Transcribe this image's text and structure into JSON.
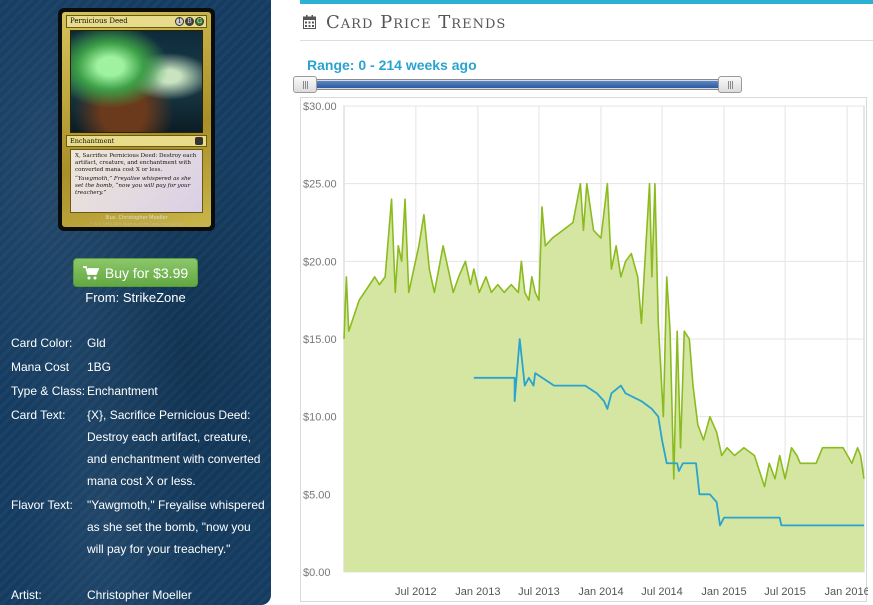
{
  "card_image": {
    "name": "Pernicious Deed",
    "mana": [
      "1",
      "B",
      "G"
    ],
    "type_line": "Enchantment",
    "rules_text": "X, Sacrifice Pernicious Deed: Destroy each artifact, creature, and enchantment with converted mana cost X or less.",
    "flavor_text": "“Yawgmoth,” Freyalise whispered as she set the bomb, “now you will pay for your treachery.”",
    "illustrator": "Illus. Christopher Moeller",
    "copyright": "™ & © 1993-2001 Wizards of the Coast, Inc. 102/143"
  },
  "buy": {
    "label": "Buy for $3.99",
    "from": "From: StrikeZone",
    "icon": "shopping-cart-icon",
    "color": "#6db04a"
  },
  "details": [
    {
      "label": "Card Color:",
      "value": "Gld"
    },
    {
      "label": "Mana Cost",
      "value": "1BG"
    },
    {
      "label": "Type & Class:",
      "value": "Enchantment"
    },
    {
      "label": "Card Text:",
      "value": "{X}, Sacrifice Pernicious Deed: Destroy each artifact, creature, and enchantment with converted mana cost X or less."
    },
    {
      "label": "Flavor Text:",
      "value": "\"Yawgmoth,\" Freyalise whispered as she set the bomb, \"now you will pay for your treachery.\""
    },
    {
      "label": "Artist:",
      "value": "Christopher Moeller"
    }
  ],
  "panel": {
    "title": "Card Price Trends",
    "title_icon": "calendar-icon",
    "range_label": "Range: 0 - 214 weeks ago",
    "accent": "#2bb2d2"
  },
  "chart_data": {
    "type": "area",
    "title": "",
    "xlabel": "",
    "ylabel": "",
    "ylim": [
      0,
      30
    ],
    "x_domain": [
      "2011-12-01",
      "2016-02-20"
    ],
    "y_ticks": [
      "$0.00",
      "$5.00",
      "$10.00",
      "$15.00",
      "$20.00",
      "$25.00",
      "$30.00"
    ],
    "x_ticks": [
      {
        "label": "Jul 2012",
        "date": "2012-07-01"
      },
      {
        "label": "Jan 2013",
        "date": "2013-01-01"
      },
      {
        "label": "Jul 2013",
        "date": "2013-07-01"
      },
      {
        "label": "Jan 2014",
        "date": "2014-01-01"
      },
      {
        "label": "Jul 2014",
        "date": "2014-07-01"
      },
      {
        "label": "Jan 2015",
        "date": "2015-01-01"
      },
      {
        "label": "Jul 2015",
        "date": "2015-07-01"
      },
      {
        "label": "Jan 2016",
        "date": "2016-01-01"
      }
    ],
    "grid": true,
    "colors": {
      "series_a": "#8bbb1f",
      "series_a_fill": "#d4e6a2",
      "series_b": "#2aa3cf"
    },
    "series": [
      {
        "key": "series_a",
        "values": [
          [
            "2011-12-01",
            15.0
          ],
          [
            "2011-12-08",
            19.0
          ],
          [
            "2011-12-15",
            15.5
          ],
          [
            "2012-01-15",
            17.5
          ],
          [
            "2012-02-15",
            18.5
          ],
          [
            "2012-03-01",
            19.0
          ],
          [
            "2012-03-15",
            18.5
          ],
          [
            "2012-04-01",
            19.0
          ],
          [
            "2012-04-20",
            24.0
          ],
          [
            "2012-05-01",
            18.0
          ],
          [
            "2012-05-10",
            21.0
          ],
          [
            "2012-05-20",
            20.0
          ],
          [
            "2012-05-30",
            24.0
          ],
          [
            "2012-06-10",
            18.0
          ],
          [
            "2012-07-10",
            21.0
          ],
          [
            "2012-07-25",
            23.0
          ],
          [
            "2012-08-10",
            19.5
          ],
          [
            "2012-08-25",
            18.0
          ],
          [
            "2012-09-20",
            21.0
          ],
          [
            "2012-10-10",
            19.0
          ],
          [
            "2012-10-20",
            18.0
          ],
          [
            "2012-11-05",
            19.0
          ],
          [
            "2012-11-25",
            20.0
          ],
          [
            "2012-12-10",
            18.5
          ],
          [
            "2012-12-20",
            19.5
          ],
          [
            "2013-01-05",
            18.0
          ],
          [
            "2013-01-25",
            19.0
          ],
          [
            "2013-02-10",
            18.0
          ],
          [
            "2013-03-01",
            18.5
          ],
          [
            "2013-03-20",
            18.0
          ],
          [
            "2013-04-10",
            18.5
          ],
          [
            "2013-05-01",
            18.0
          ],
          [
            "2013-05-10",
            20.0
          ],
          [
            "2013-05-20",
            18.0
          ],
          [
            "2013-06-01",
            17.5
          ],
          [
            "2013-06-10",
            19.0
          ],
          [
            "2013-06-20",
            18.0
          ],
          [
            "2013-07-01",
            17.5
          ],
          [
            "2013-07-10",
            23.5
          ],
          [
            "2013-07-20",
            21.0
          ],
          [
            "2013-08-10",
            21.5
          ],
          [
            "2013-09-10",
            22.0
          ],
          [
            "2013-10-10",
            22.5
          ],
          [
            "2013-11-01",
            25.0
          ],
          [
            "2013-11-10",
            22.0
          ],
          [
            "2013-11-20",
            25.0
          ],
          [
            "2013-12-10",
            22.0
          ],
          [
            "2014-01-01",
            21.5
          ],
          [
            "2014-01-20",
            25.0
          ],
          [
            "2014-02-01",
            19.5
          ],
          [
            "2014-02-15",
            21.0
          ],
          [
            "2014-03-01",
            19.0
          ],
          [
            "2014-03-15",
            20.0
          ],
          [
            "2014-04-01",
            20.5
          ],
          [
            "2014-04-20",
            19.0
          ],
          [
            "2014-05-01",
            16.0
          ],
          [
            "2014-05-10",
            19.5
          ],
          [
            "2014-05-25",
            25.0
          ],
          [
            "2014-06-01",
            19.0
          ],
          [
            "2014-06-10",
            25.0
          ],
          [
            "2014-06-20",
            16.0
          ],
          [
            "2014-07-05",
            10.0
          ],
          [
            "2014-07-15",
            19.0
          ],
          [
            "2014-07-25",
            15.5
          ],
          [
            "2014-08-05",
            6.0
          ],
          [
            "2014-08-15",
            15.5
          ],
          [
            "2014-08-25",
            8.0
          ],
          [
            "2014-09-05",
            15.5
          ],
          [
            "2014-09-20",
            15.0
          ],
          [
            "2014-10-01",
            12.0
          ],
          [
            "2014-10-15",
            9.5
          ],
          [
            "2014-11-01",
            8.5
          ],
          [
            "2014-11-20",
            10.0
          ],
          [
            "2014-12-10",
            9.0
          ],
          [
            "2014-12-25",
            7.5
          ],
          [
            "2015-01-10",
            8.0
          ],
          [
            "2015-02-01",
            7.5
          ],
          [
            "2015-03-01",
            8.0
          ],
          [
            "2015-04-01",
            7.5
          ],
          [
            "2015-05-01",
            5.5
          ],
          [
            "2015-05-15",
            7.0
          ],
          [
            "2015-06-01",
            6.0
          ],
          [
            "2015-06-15",
            7.5
          ],
          [
            "2015-07-01",
            6.0
          ],
          [
            "2015-07-20",
            8.0
          ],
          [
            "2015-08-05",
            7.5
          ],
          [
            "2015-08-15",
            7.0
          ],
          [
            "2015-09-01",
            7.0
          ],
          [
            "2015-10-01",
            7.0
          ],
          [
            "2015-10-20",
            8.0
          ],
          [
            "2015-11-20",
            8.0
          ],
          [
            "2015-12-20",
            8.0
          ],
          [
            "2016-01-15",
            7.0
          ],
          [
            "2016-02-01",
            8.0
          ],
          [
            "2016-02-10",
            7.5
          ],
          [
            "2016-02-20",
            6.0
          ]
        ]
      },
      {
        "key": "series_b",
        "values": [
          [
            "2012-12-20",
            12.5
          ],
          [
            "2013-04-20",
            12.5
          ],
          [
            "2013-04-20",
            11.0
          ],
          [
            "2013-05-05",
            15.0
          ],
          [
            "2013-05-20",
            12.0
          ],
          [
            "2013-06-01",
            12.5
          ],
          [
            "2013-06-15",
            12.0
          ],
          [
            "2013-06-20",
            12.8
          ],
          [
            "2013-08-15",
            12.0
          ],
          [
            "2013-11-15",
            12.0
          ],
          [
            "2013-12-20",
            11.5
          ],
          [
            "2014-01-10",
            11.0
          ],
          [
            "2014-01-20",
            10.5
          ],
          [
            "2014-02-01",
            11.5
          ],
          [
            "2014-03-01",
            12.0
          ],
          [
            "2014-03-15",
            11.5
          ],
          [
            "2014-05-01",
            11.0
          ],
          [
            "2014-06-01",
            10.5
          ],
          [
            "2014-06-20",
            10.0
          ],
          [
            "2014-07-01",
            8.5
          ],
          [
            "2014-07-15",
            7.0
          ],
          [
            "2014-08-15",
            7.0
          ],
          [
            "2014-08-20",
            6.5
          ],
          [
            "2014-09-01",
            7.0
          ],
          [
            "2014-10-10",
            7.0
          ],
          [
            "2014-10-20",
            5.0
          ],
          [
            "2014-11-20",
            5.0
          ],
          [
            "2014-12-10",
            4.5
          ],
          [
            "2014-12-20",
            3.0
          ],
          [
            "2015-01-01",
            3.5
          ],
          [
            "2015-06-15",
            3.5
          ],
          [
            "2015-06-20",
            3.0
          ],
          [
            "2016-02-20",
            3.0
          ]
        ]
      }
    ]
  }
}
